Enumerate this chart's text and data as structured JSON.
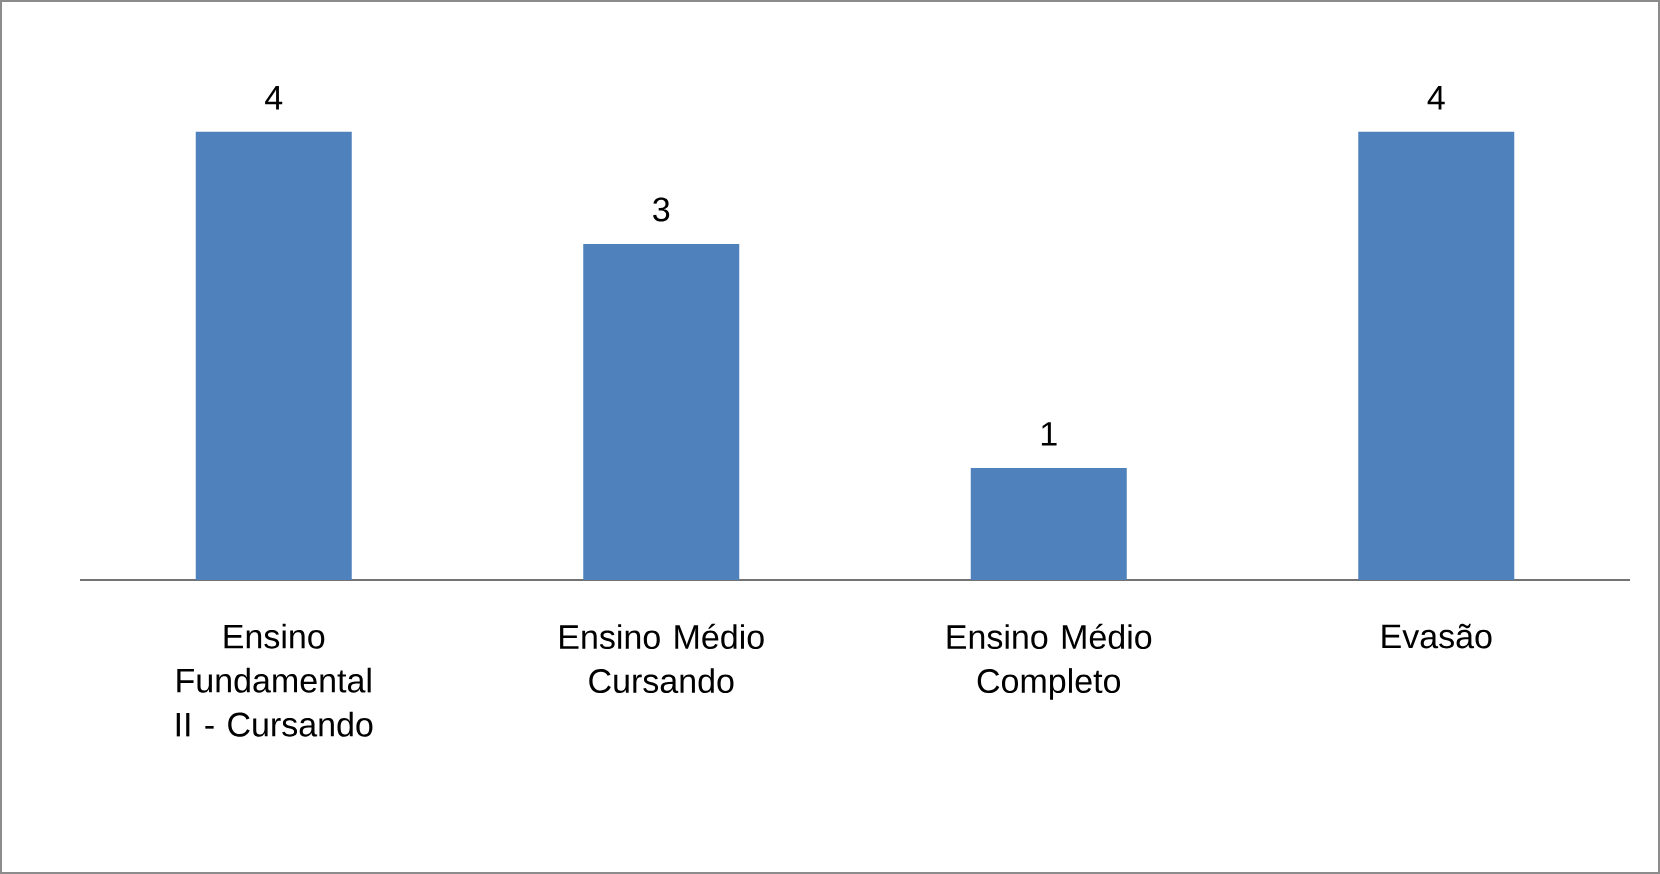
{
  "chart_data": {
    "type": "bar",
    "categories": [
      "Ensino Fundamental II - Cursando",
      "Ensino Médio Cursando",
      "Ensino Médio Completo",
      "Evasão"
    ],
    "values": [
      4,
      3,
      1,
      4
    ],
    "color": "#4f81bd",
    "data_labels": true
  }
}
